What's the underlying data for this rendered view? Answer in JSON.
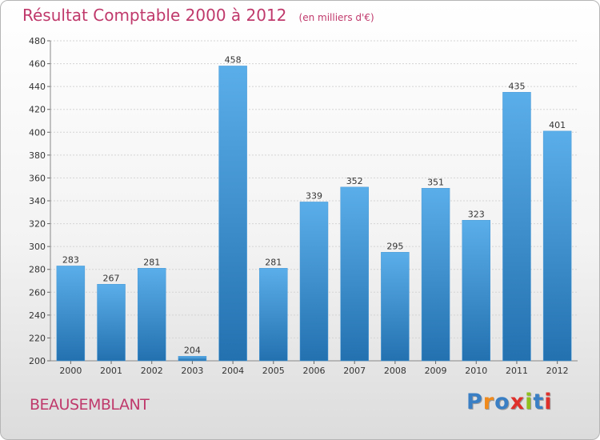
{
  "header": {
    "title": "Résultat Comptable 2000 à 2012",
    "subtitle": "(en milliers d'€)"
  },
  "footer": {
    "city": "BEAUSEMBLANT",
    "logo": "Proxiti"
  },
  "colors": {
    "title": "#c0396b",
    "bar_top": "#5aaee9",
    "bar_bottom": "#2471b0",
    "logo_letters": [
      "#3a7fc4",
      "#f08a1c",
      "#3a7fc4",
      "#e0302c",
      "#8fbe1f",
      "#3a7fc4",
      "#e0302c"
    ]
  },
  "chart_data": {
    "type": "bar",
    "categories": [
      "2000",
      "2001",
      "2002",
      "2003",
      "2004",
      "2005",
      "2006",
      "2007",
      "2008",
      "2009",
      "2010",
      "2011",
      "2012"
    ],
    "values": [
      283,
      267,
      281,
      204,
      458,
      281,
      339,
      352,
      295,
      351,
      323,
      435,
      401
    ],
    "ylim": [
      200,
      480
    ],
    "yticks": [
      200,
      220,
      240,
      260,
      280,
      300,
      320,
      340,
      360,
      380,
      400,
      420,
      440,
      460,
      480
    ],
    "grid": true
  }
}
